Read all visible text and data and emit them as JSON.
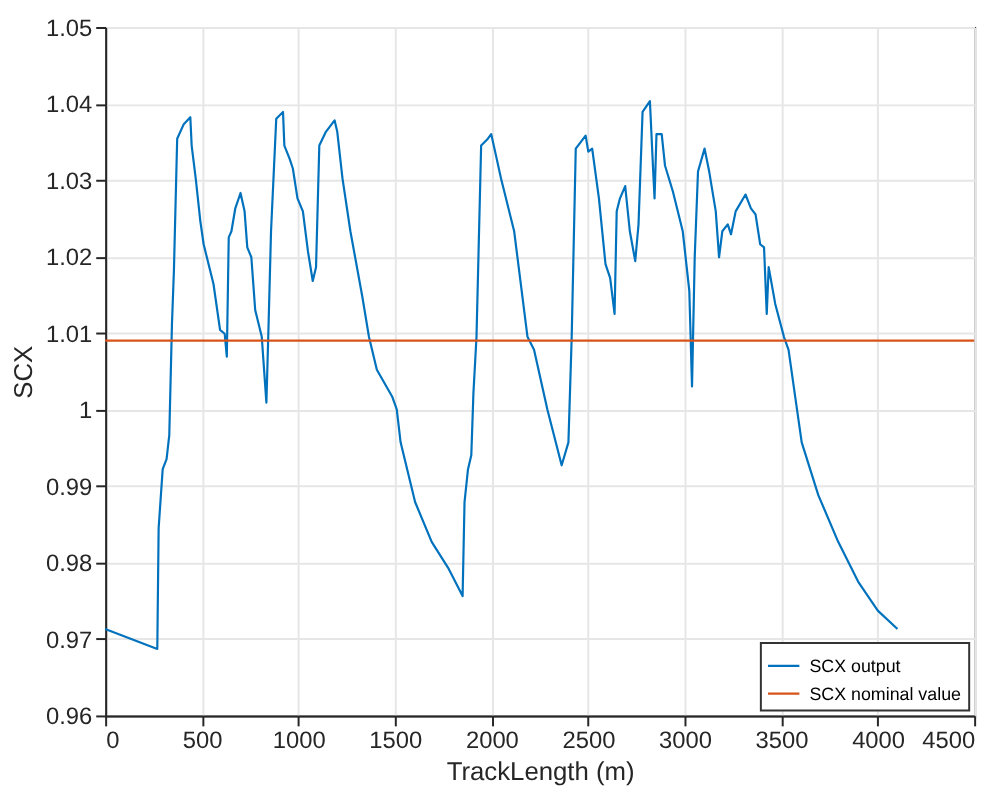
{
  "chart_data": {
    "type": "line",
    "xlabel": "TrackLength (m)",
    "ylabel": "SCX",
    "xlim": [
      0,
      4500
    ],
    "xticks": [
      0,
      500,
      1000,
      1500,
      2000,
      2500,
      3000,
      3500,
      4000,
      4500
    ],
    "ylim": [
      0.96,
      1.05
    ],
    "yticks": [
      0.96,
      0.97,
      0.98,
      0.99,
      1,
      1.01,
      1.02,
      1.03,
      1.04,
      1.05
    ],
    "grid": true,
    "legend": "bottom right",
    "line_style": "solid",
    "marker": "none",
    "series": [
      {
        "name": "SCX output",
        "color": "#0072bd",
        "x": [
          0,
          270,
          277,
          298,
          318,
          332,
          346,
          356,
          373,
          407,
          441,
          448,
          469,
          493,
          510,
          561,
          595,
          619,
          630,
          640,
          654,
          674,
          701,
          722,
          736,
          757,
          777,
          811,
          835,
          845,
          859,
          886,
          921,
          928,
          955,
          972,
          996,
          1024,
          1050,
          1075,
          1092,
          1109,
          1143,
          1188,
          1202,
          1229,
          1270,
          1332,
          1366,
          1407,
          1486,
          1510,
          1530,
          1605,
          1691,
          1776,
          1851,
          1861,
          1879,
          1896,
          1907,
          1923,
          1947,
          1982,
          1999,
          2016,
          2050,
          2118,
          2187,
          2221,
          2290,
          2364,
          2399,
          2416,
          2437,
          2488,
          2502,
          2522,
          2557,
          2591,
          2615,
          2638,
          2649,
          2666,
          2693,
          2717,
          2745,
          2762,
          2783,
          2821,
          2838,
          2845,
          2855,
          2882,
          2899,
          2940,
          2991,
          3025,
          3039,
          3053,
          3070,
          3104,
          3128,
          3162,
          3179,
          3196,
          3224,
          3241,
          3265,
          3316,
          3344,
          3368,
          3392,
          3412,
          3426,
          3436,
          3470,
          3515,
          3539,
          3573,
          3607,
          3693,
          3796,
          3899,
          4001,
          4103
        ],
        "values": [
          0.9713,
          0.9687,
          0.9845,
          0.9922,
          0.9935,
          0.9966,
          1.0112,
          1.0181,
          1.0354,
          1.0373,
          1.0382,
          1.0345,
          1.0302,
          1.0246,
          1.0216,
          1.0164,
          1.0104,
          1.0099,
          1.0069,
          1.0225,
          1.0233,
          1.0263,
          1.0283,
          1.0259,
          1.0212,
          1.0199,
          1.013,
          1.0095,
          1.0009,
          1.0099,
          1.0233,
          1.038,
          1.0389,
          1.0345,
          1.0328,
          1.0315,
          1.0276,
          1.0259,
          1.0207,
          1.0168,
          1.0186,
          1.0345,
          1.0363,
          1.0378,
          1.0363,
          1.0302,
          1.0233,
          1.0147,
          1.0095,
          1.0052,
          1.0017,
          1.0,
          0.9957,
          0.9879,
          0.9827,
          0.9793,
          0.9756,
          0.9879,
          0.9922,
          0.994,
          1.0021,
          1.0095,
          1.0345,
          1.0354,
          1.036,
          1.0341,
          1.0302,
          1.0233,
          1.0095,
          1.0078,
          1.0,
          0.9927,
          0.9957,
          1.0095,
          1.0341,
          1.0358,
          1.0337,
          1.0341,
          1.0276,
          1.019,
          1.0172,
          1.0125,
          1.0259,
          1.0276,
          1.0292,
          1.0233,
          1.0194,
          1.0242,
          1.0389,
          1.0403,
          1.0311,
          1.0276,
          1.036,
          1.036,
          1.0319,
          1.0285,
          1.0233,
          1.0155,
          1.003,
          1.0199,
          1.0311,
          1.0341,
          1.0311,
          1.0259,
          1.0199,
          1.0233,
          1.0242,
          1.0229,
          1.0259,
          1.0281,
          1.0263,
          1.0255,
          1.0216,
          1.0212,
          1.0125,
          1.0186,
          1.0138,
          1.0095,
          1.0078,
          1.0017,
          0.9957,
          0.9888,
          0.9827,
          0.9775,
          0.9737,
          0.9713
        ]
      },
      {
        "name": "SCX nominal value",
        "color": "#d95319",
        "x": [
          0,
          4500
        ],
        "values": [
          1.009,
          1.009
        ]
      }
    ]
  }
}
